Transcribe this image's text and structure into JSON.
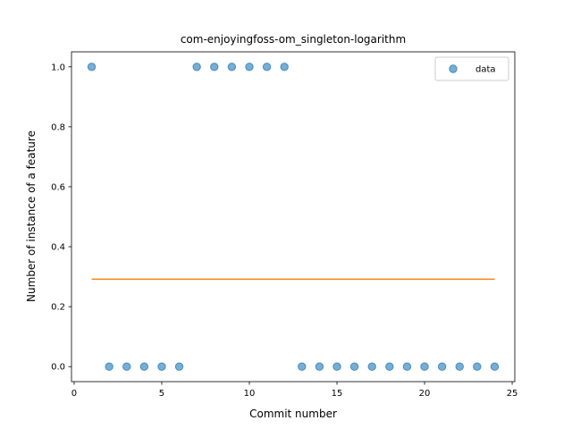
{
  "chart_data": {
    "type": "scatter",
    "title": "com-enjoyingfoss-om_singleton-logarithm",
    "xlabel": "Commit number",
    "ylabel": "Number of instance of a feature",
    "xlim": [
      -0.15,
      25.15
    ],
    "ylim": [
      -0.05,
      1.05
    ],
    "xticks": [
      0,
      5,
      10,
      15,
      20,
      25
    ],
    "yticks": [
      0.0,
      0.2,
      0.4,
      0.6,
      0.8,
      1.0
    ],
    "xtick_labels": [
      "0",
      "5",
      "10",
      "15",
      "20",
      "25"
    ],
    "ytick_labels": [
      "0.0",
      "0.2",
      "0.4",
      "0.6",
      "0.8",
      "1.0"
    ],
    "grid": false,
    "legend": {
      "placement": "top-right",
      "entries": [
        "data"
      ]
    },
    "series": [
      {
        "name": "data",
        "kind": "scatter",
        "color": "#1f77b4",
        "x": [
          1,
          2,
          3,
          4,
          5,
          6,
          7,
          8,
          9,
          10,
          11,
          12,
          13,
          14,
          15,
          16,
          17,
          18,
          19,
          20,
          21,
          22,
          23,
          24
        ],
        "y": [
          1,
          0,
          0,
          0,
          0,
          0,
          1,
          1,
          1,
          1,
          1,
          1,
          0,
          0,
          0,
          0,
          0,
          0,
          0,
          0,
          0,
          0,
          0,
          0
        ]
      },
      {
        "kind": "line",
        "color": "#ff7f0e",
        "x": [
          1,
          24
        ],
        "y": [
          0.2917,
          0.2917
        ]
      }
    ]
  }
}
